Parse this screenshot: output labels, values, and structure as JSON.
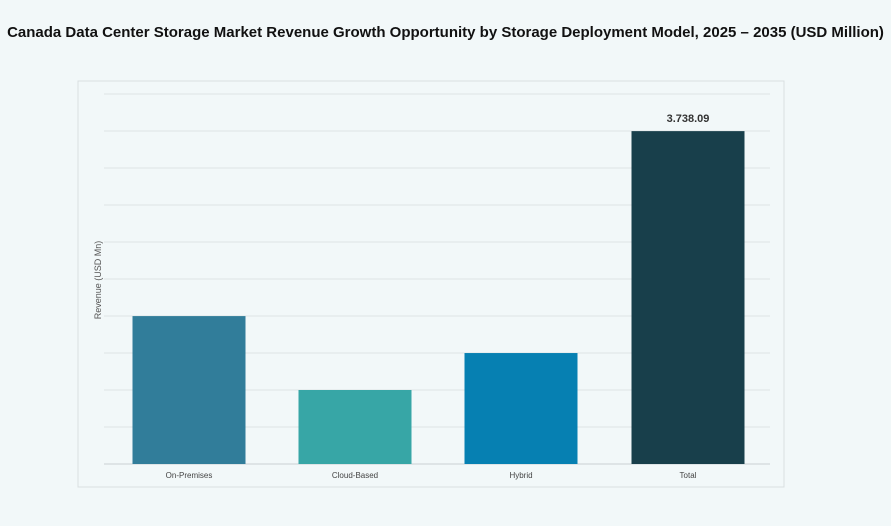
{
  "chart_data": {
    "type": "bar",
    "title": "Canada Data Center Storage Market Revenue Growth Opportunity by Storage Deployment Model, 2025 – 2035 (USD Million)",
    "ylabel": "Revenue (USD Mn)",
    "xlabel": "",
    "categories": [
      "On-Premises",
      "Cloud-Based",
      "Hybrid",
      "Total"
    ],
    "values": [
      1661,
      831,
      1246,
      3738.09
    ],
    "data_labels": [
      "",
      "",
      "",
      "3.738.09"
    ],
    "colors": [
      "#317d9a",
      "#37a6a6",
      "#0680b2",
      "#183f4b"
    ],
    "ylim": [
      0,
      4155
    ],
    "grid": true,
    "legend": "none"
  }
}
